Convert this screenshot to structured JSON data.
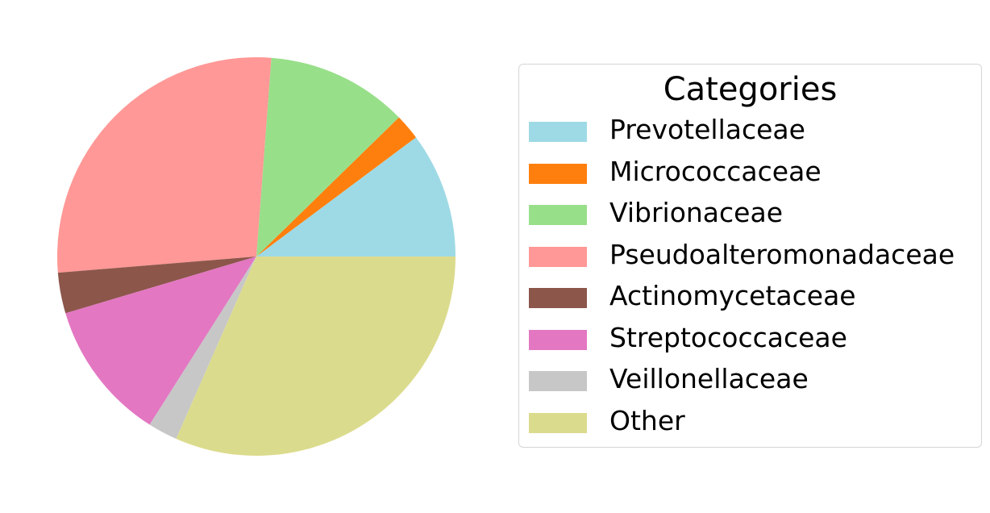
{
  "chart_data": {
    "type": "pie",
    "slices": [
      {
        "label": "Prevotellaceae",
        "value": 10.2,
        "color": "#9edae5"
      },
      {
        "label": "Micrococcaceae",
        "value": 2.1,
        "color": "#ff7f0e"
      },
      {
        "label": "Vibrionaceae",
        "value": 11.5,
        "color": "#98df8a"
      },
      {
        "label": "Pseudoalteromonadaceae",
        "value": 27.5,
        "color": "#ff9896"
      },
      {
        "label": "Actinomycetaceae",
        "value": 3.3,
        "color": "#8c564b"
      },
      {
        "label": "Streptococcaceae",
        "value": 11.4,
        "color": "#e377c2"
      },
      {
        "label": "Veillonellaceae",
        "value": 2.4,
        "color": "#c7c7c7"
      },
      {
        "label": "Other",
        "value": 31.6,
        "color": "#dbdb8d"
      }
    ],
    "start_angle_deg": 0,
    "direction": "counterclockwise",
    "legend": {
      "title": "Categories",
      "placement": "right"
    }
  }
}
